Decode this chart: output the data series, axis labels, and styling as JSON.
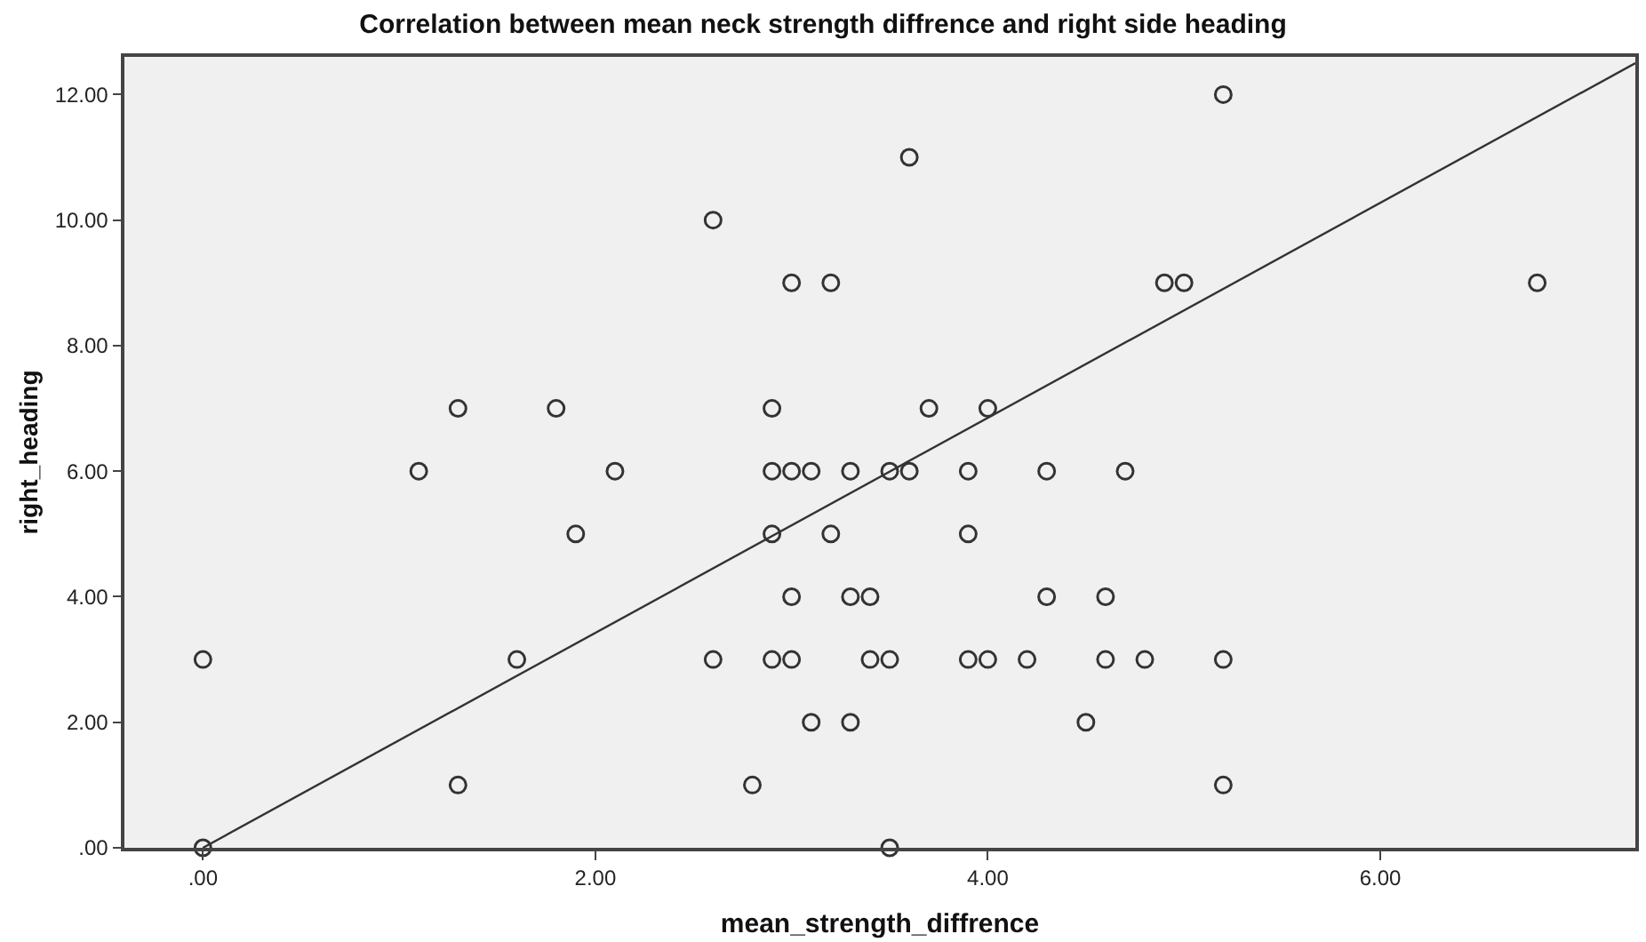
{
  "chart_data": {
    "type": "scatter",
    "title": "Correlation between mean neck strength diffrence and right side heading",
    "xlabel": "mean_strength_diffrence",
    "ylabel": "right_heading",
    "xlim": [
      -0.4,
      7.3
    ],
    "ylim": [
      0,
      12.6
    ],
    "xticks": [
      {
        "value": 0,
        "label": ".00"
      },
      {
        "value": 2,
        "label": "2.00"
      },
      {
        "value": 4,
        "label": "4.00"
      },
      {
        "value": 6,
        "label": "6.00"
      }
    ],
    "yticks": [
      {
        "value": 0,
        "label": ".00"
      },
      {
        "value": 2,
        "label": "2.00"
      },
      {
        "value": 4,
        "label": "4.00"
      },
      {
        "value": 6,
        "label": "6.00"
      },
      {
        "value": 8,
        "label": "8.00"
      },
      {
        "value": 10,
        "label": "10.00"
      },
      {
        "value": 12,
        "label": "12.00"
      }
    ],
    "grid": false,
    "marker": "circle",
    "series": [
      {
        "color": "#333333",
        "x": [
          0,
          0,
          1.1,
          1.3,
          1.3,
          1.6,
          1.8,
          1.9,
          2.1,
          2.6,
          2.6,
          2.8,
          2.9,
          2.9,
          2.9,
          2.9,
          3.0,
          3.0,
          3.0,
          3.0,
          3.1,
          3.1,
          3.2,
          3.2,
          3.3,
          3.3,
          3.3,
          3.4,
          3.4,
          3.5,
          3.5,
          3.5,
          3.6,
          3.6,
          3.7,
          3.9,
          3.9,
          3.9,
          4.0,
          4.0,
          4.2,
          4.3,
          4.3,
          4.5,
          4.6,
          4.6,
          4.7,
          4.8,
          4.9,
          5.0,
          5.2,
          5.2,
          5.2,
          6.8
        ],
        "values": [
          3,
          0,
          6,
          7,
          1,
          3,
          7,
          5,
          6,
          10,
          3,
          1,
          7,
          6,
          5,
          3,
          9,
          6,
          4,
          3,
          6,
          2,
          9,
          5,
          6,
          4,
          2,
          4,
          3,
          6,
          3,
          0,
          11,
          6,
          7,
          6,
          5,
          3,
          7,
          3,
          3,
          6,
          4,
          2,
          4,
          3,
          6,
          3,
          9,
          9,
          12,
          3,
          1,
          9
        ]
      },
      {
        "type": "line",
        "marker": "none",
        "color": "#333333",
        "x": [
          0,
          7.3
        ],
        "values": [
          0,
          12.5
        ]
      }
    ]
  }
}
